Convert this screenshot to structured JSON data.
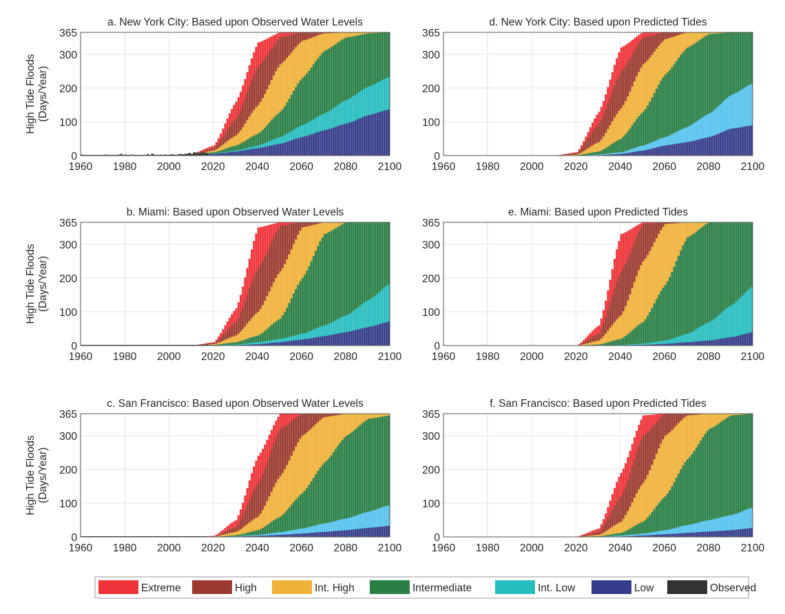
{
  "chart_data": {
    "type": "area",
    "ylabel_line1": "High Tide Floods",
    "ylabel_line2": "(Days/Year)",
    "xlim": [
      1960,
      2100
    ],
    "ylim": [
      0,
      365
    ],
    "xticks": [
      "1960",
      "1980",
      "2000",
      "2020",
      "2040",
      "2060",
      "2080",
      "2100"
    ],
    "yticks": [
      "0",
      "100",
      "200",
      "300",
      "365"
    ],
    "grid": true,
    "legend_placement": "bottom",
    "legend": [
      {
        "name": "Extreme",
        "color": "#ee3338"
      },
      {
        "name": "High",
        "color": "#9b3b2f"
      },
      {
        "name": "Int. High",
        "color": "#f0b23a"
      },
      {
        "name": "Intermediate",
        "color": "#2a7f45"
      },
      {
        "name": "Int. Low",
        "color": "#27bdbf"
      },
      {
        "name": "Low",
        "color": "#353d8a"
      },
      {
        "name": "Observed",
        "color": "#333333"
      }
    ],
    "projection_years": [
      2000,
      2010,
      2020,
      2030,
      2040,
      2050,
      2060,
      2070,
      2080,
      2090,
      2100
    ],
    "panels": [
      {
        "title": "a. New York City: Based upon Observed Water Levels",
        "int_low_color": "#27bdbf",
        "observed": {
          "start_year": 1960,
          "values": [
            3,
            2,
            2,
            1,
            1,
            2,
            1,
            2,
            2,
            1,
            2,
            3,
            1,
            2,
            2,
            1,
            2,
            3,
            5,
            2,
            3,
            2,
            2,
            3,
            1,
            2,
            2,
            2,
            1,
            2,
            4,
            2,
            6,
            3,
            2,
            2,
            3,
            2,
            3,
            2,
            3,
            4,
            3,
            2,
            4,
            5,
            4,
            5,
            6,
            8,
            5,
            10,
            9,
            7,
            8,
            10,
            9,
            8
          ]
        },
        "series": [
          {
            "name": "Extreme",
            "values": [
              0,
              5,
              30,
              160,
              335,
              365,
              365,
              365,
              365,
              365,
              365
            ]
          },
          {
            "name": "High",
            "values": [
              0,
              4,
              22,
              110,
              265,
              350,
              365,
              365,
              365,
              365,
              365
            ]
          },
          {
            "name": "Int. High",
            "values": [
              0,
              3,
              15,
              60,
              150,
              270,
              340,
              362,
              365,
              365,
              365
            ]
          },
          {
            "name": "Intermediate",
            "values": [
              0,
              2,
              10,
              30,
              65,
              130,
              230,
              310,
              350,
              362,
              365
            ]
          },
          {
            "name": "Int. Low",
            "values": [
              0,
              1,
              6,
              15,
              30,
              55,
              90,
              125,
              165,
              205,
              235
            ]
          },
          {
            "name": "Low",
            "values": [
              0,
              1,
              5,
              12,
              22,
              35,
              55,
              75,
              95,
              120,
              138
            ]
          }
        ]
      },
      {
        "title": "b. Miami: Based upon Observed Water Levels",
        "int_low_color": "#27bdbf",
        "observed": {
          "start_year": 1960,
          "values": [
            0,
            0,
            0,
            0,
            0,
            0,
            0,
            0,
            0,
            0,
            0,
            0,
            0,
            0,
            0,
            0,
            0,
            0,
            0,
            0,
            0,
            0,
            0,
            0,
            0,
            0,
            0,
            0,
            0,
            0,
            0,
            0,
            0,
            0,
            0,
            0,
            0,
            0,
            0,
            0,
            0,
            1,
            0,
            0,
            0,
            1,
            0,
            1,
            0,
            1,
            1,
            1,
            2,
            1,
            2,
            3,
            2,
            3
          ]
        },
        "series": [
          {
            "name": "Extreme",
            "values": [
              0,
              0,
              10,
              110,
              350,
              365,
              365,
              365,
              365,
              365,
              365
            ]
          },
          {
            "name": "High",
            "values": [
              0,
              0,
              7,
              70,
              230,
              355,
              365,
              365,
              365,
              365,
              365
            ]
          },
          {
            "name": "Int. High",
            "values": [
              0,
              0,
              4,
              30,
              100,
              220,
              350,
              365,
              365,
              365,
              365
            ]
          },
          {
            "name": "Intermediate",
            "values": [
              0,
              0,
              2,
              10,
              30,
              80,
              200,
              330,
              365,
              365,
              365
            ]
          },
          {
            "name": "Int. Low",
            "values": [
              0,
              0,
              1,
              3,
              10,
              20,
              35,
              60,
              90,
              135,
              185
            ]
          },
          {
            "name": "Low",
            "values": [
              0,
              0,
              0,
              1,
              4,
              10,
              18,
              28,
              40,
              55,
              72
            ]
          }
        ]
      },
      {
        "title": "c. San Francisco: Based upon Observed Water Levels",
        "int_low_color": "#56c3ee",
        "observed": {
          "start_year": 1960,
          "values": [
            0,
            0,
            0,
            0,
            0,
            0,
            0,
            0,
            0,
            0,
            0,
            1,
            0,
            0,
            0,
            0,
            0,
            0,
            0,
            1,
            0,
            0,
            2,
            2,
            0,
            0,
            0,
            0,
            0,
            0,
            0,
            0,
            0,
            0,
            0,
            0,
            0,
            0,
            1,
            0,
            0,
            0,
            0,
            0,
            0,
            0,
            0,
            0,
            0,
            0,
            0,
            0,
            0,
            0,
            0,
            1,
            0,
            1
          ]
        },
        "series": [
          {
            "name": "Extreme",
            "values": [
              0,
              0,
              3,
              50,
              240,
              365,
              365,
              365,
              365,
              365,
              365
            ]
          },
          {
            "name": "High",
            "values": [
              0,
              0,
              2,
              30,
              160,
              320,
              365,
              365,
              365,
              365,
              365
            ]
          },
          {
            "name": "Int. High",
            "values": [
              0,
              0,
              1,
              15,
              60,
              180,
              300,
              355,
              365,
              365,
              365
            ]
          },
          {
            "name": "Intermediate",
            "values": [
              0,
              0,
              0,
              5,
              20,
              60,
              130,
              220,
              300,
              350,
              360
            ]
          },
          {
            "name": "Int. Low",
            "values": [
              0,
              0,
              0,
              2,
              6,
              14,
              25,
              40,
              55,
              75,
              95
            ]
          },
          {
            "name": "Low",
            "values": [
              0,
              0,
              0,
              1,
              3,
              6,
              10,
              15,
              20,
              27,
              33
            ]
          }
        ]
      },
      {
        "title": "d. New York City: Based upon Predicted Tides",
        "int_low_color": "#56c3ee",
        "series": [
          {
            "name": "Extreme",
            "values": [
              0,
              0,
              10,
              130,
              320,
              365,
              365,
              365,
              365,
              365,
              365
            ]
          },
          {
            "name": "High",
            "values": [
              0,
              0,
              8,
              95,
              250,
              350,
              365,
              365,
              365,
              365,
              365
            ]
          },
          {
            "name": "Int. High",
            "values": [
              0,
              0,
              3,
              40,
              140,
              270,
              345,
              365,
              365,
              365,
              365
            ]
          },
          {
            "name": "Intermediate",
            "values": [
              0,
              0,
              1,
              12,
              50,
              130,
              240,
              320,
              360,
              365,
              365
            ]
          },
          {
            "name": "Int. Low",
            "values": [
              0,
              0,
              0,
              3,
              10,
              30,
              55,
              85,
              125,
              180,
              215
            ]
          },
          {
            "name": "Low",
            "values": [
              0,
              0,
              0,
              1,
              5,
              15,
              30,
              40,
              55,
              80,
              90
            ]
          }
        ]
      },
      {
        "title": "e. Miami: Based upon Predicted Tides",
        "int_low_color": "#27bdbf",
        "series": [
          {
            "name": "Extreme",
            "values": [
              0,
              0,
              0,
              60,
              330,
              365,
              365,
              365,
              365,
              365,
              365
            ]
          },
          {
            "name": "High",
            "values": [
              0,
              0,
              0,
              35,
              220,
              360,
              365,
              365,
              365,
              365,
              365
            ]
          },
          {
            "name": "Int. High",
            "values": [
              0,
              0,
              0,
              15,
              90,
              250,
              360,
              365,
              365,
              365,
              365
            ]
          },
          {
            "name": "Intermediate",
            "values": [
              0,
              0,
              0,
              3,
              20,
              70,
              180,
              320,
              365,
              365,
              365
            ]
          },
          {
            "name": "Int. Low",
            "values": [
              0,
              0,
              0,
              0,
              2,
              6,
              15,
              35,
              70,
              120,
              178
            ]
          },
          {
            "name": "Low",
            "values": [
              0,
              0,
              0,
              0,
              0,
              2,
              5,
              10,
              15,
              25,
              40
            ]
          }
        ]
      },
      {
        "title": "f. San Francisco: Based upon Predicted Tides",
        "int_low_color": "#56c3ee",
        "series": [
          {
            "name": "Extreme",
            "values": [
              0,
              0,
              1,
              25,
              190,
              360,
              365,
              365,
              365,
              365,
              365
            ]
          },
          {
            "name": "High",
            "values": [
              0,
              0,
              0,
              15,
              120,
              300,
              365,
              365,
              365,
              365,
              365
            ]
          },
          {
            "name": "Int. High",
            "values": [
              0,
              0,
              0,
              6,
              45,
              160,
              300,
              360,
              365,
              365,
              365
            ]
          },
          {
            "name": "Intermediate",
            "values": [
              0,
              0,
              0,
              2,
              12,
              45,
              120,
              230,
              320,
              360,
              365
            ]
          },
          {
            "name": "Int. Low",
            "values": [
              0,
              0,
              0,
              1,
              4,
              10,
              20,
              35,
              50,
              65,
              88
            ]
          },
          {
            "name": "Low",
            "values": [
              0,
              0,
              0,
              0,
              1,
              4,
              8,
              12,
              16,
              20,
              27
            ]
          }
        ]
      }
    ]
  }
}
